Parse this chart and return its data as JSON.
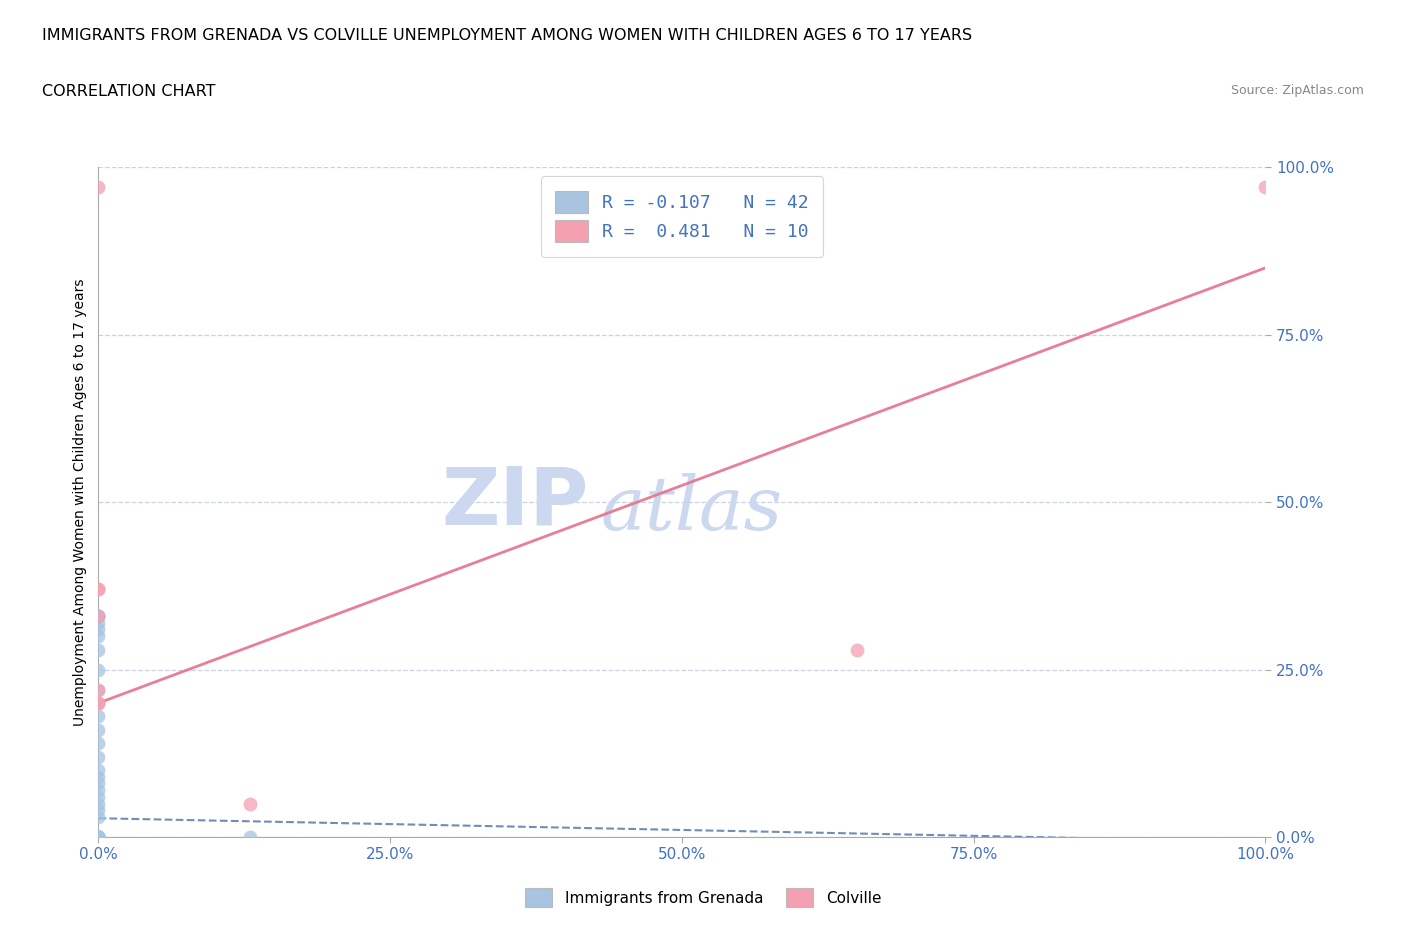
{
  "title_line1": "IMMIGRANTS FROM GRENADA VS COLVILLE UNEMPLOYMENT AMONG WOMEN WITH CHILDREN AGES 6 TO 17 YEARS",
  "title_line2": "CORRELATION CHART",
  "source_text": "Source: ZipAtlas.com",
  "ylabel": "Unemployment Among Women with Children Ages 6 to 17 years",
  "xlim": [
    0.0,
    1.0
  ],
  "ylim": [
    0.0,
    1.0
  ],
  "xticks": [
    0.0,
    0.25,
    0.5,
    0.75,
    1.0
  ],
  "yticks": [
    0.0,
    0.25,
    0.5,
    0.75,
    1.0
  ],
  "xtick_labels": [
    "0.0%",
    "25.0%",
    "50.0%",
    "75.0%",
    "100.0%"
  ],
  "ytick_labels": [
    "0.0%",
    "25.0%",
    "50.0%",
    "75.0%",
    "100.0%"
  ],
  "blue_R": -0.107,
  "blue_N": 42,
  "pink_R": 0.481,
  "pink_N": 10,
  "blue_color": "#a8c4e0",
  "pink_color": "#f4a0b0",
  "blue_line_color": "#6080b0",
  "pink_line_color": "#e8708a",
  "watermark_zip": "ZIP",
  "watermark_atlas": "atlas",
  "watermark_color": "#ccd8f0",
  "grid_color": "#c8d4e4",
  "background_color": "#ffffff",
  "title_fontsize": 11.5,
  "subtitle_fontsize": 11.5,
  "axis_label_fontsize": 10,
  "tick_fontsize": 11,
  "legend_fontsize": 13,
  "blue_line_intercept": 0.028,
  "blue_line_slope": -0.035,
  "pink_line_intercept": 0.2,
  "pink_line_slope": 0.65,
  "blue_points_x": [
    0.0,
    0.0,
    0.0,
    0.0,
    0.0,
    0.0,
    0.0,
    0.0,
    0.0,
    0.0,
    0.0,
    0.0,
    0.0,
    0.0,
    0.0,
    0.0,
    0.0,
    0.0,
    0.0,
    0.0,
    0.0,
    0.0,
    0.0,
    0.0,
    0.0,
    0.0,
    0.0,
    0.0,
    0.0,
    0.0,
    0.0,
    0.0,
    0.0,
    0.0,
    0.0,
    0.0,
    0.0,
    0.0,
    0.0,
    0.0,
    0.0,
    0.13
  ],
  "blue_points_y": [
    0.0,
    0.0,
    0.0,
    0.0,
    0.0,
    0.0,
    0.0,
    0.0,
    0.0,
    0.0,
    0.0,
    0.0,
    0.0,
    0.0,
    0.0,
    0.0,
    0.0,
    0.0,
    0.03,
    0.04,
    0.05,
    0.06,
    0.07,
    0.08,
    0.09,
    0.1,
    0.12,
    0.14,
    0.16,
    0.18,
    0.2,
    0.22,
    0.25,
    0.28,
    0.3,
    0.31,
    0.32,
    0.33,
    0.33,
    0.33,
    0.33,
    0.0
  ],
  "pink_points_x": [
    0.0,
    0.0,
    0.0,
    0.0,
    0.0,
    0.13,
    0.65,
    1.0,
    0.0,
    0.0
  ],
  "pink_points_y": [
    0.97,
    0.37,
    0.33,
    0.22,
    0.2,
    0.05,
    0.28,
    0.97,
    0.37,
    0.2
  ]
}
